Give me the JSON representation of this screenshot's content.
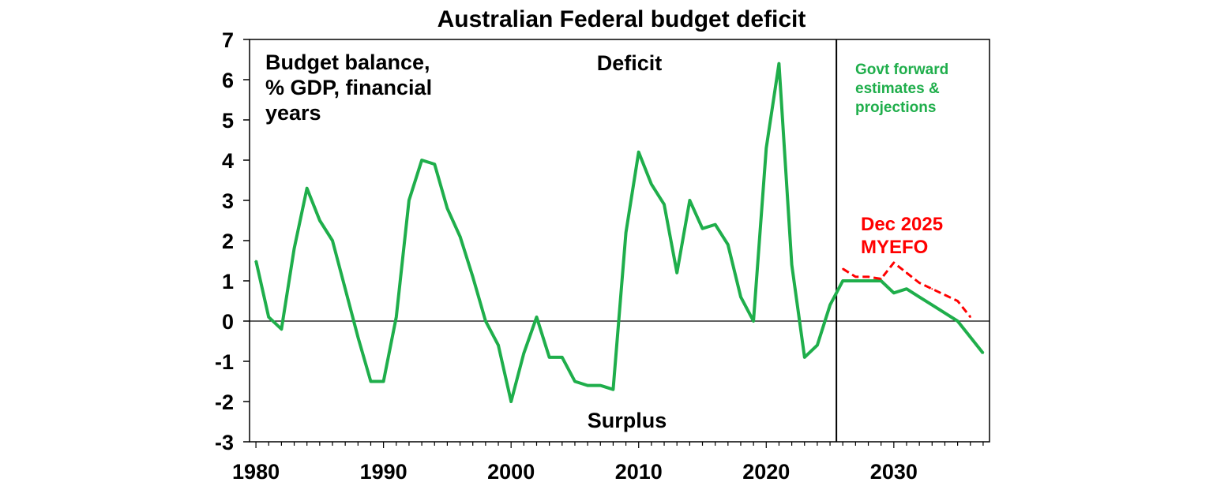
{
  "chart_data": {
    "type": "line",
    "title": "Australian Federal budget deficit",
    "xlabel": "",
    "ylabel": "",
    "xlim": [
      1979.5,
      2037.5
    ],
    "ylim": [
      -3,
      7
    ],
    "x_ticks": [
      "1980",
      "1990",
      "2000",
      "2010",
      "2020",
      "2030"
    ],
    "y_ticks": [
      "7",
      "6",
      "5",
      "4",
      "3",
      "2",
      "1",
      "0",
      "-1",
      "-2",
      "-3"
    ],
    "grid": false,
    "annotations": {
      "series_description": [
        "Budget balance,",
        "% GDP, financial",
        "years"
      ],
      "deficit": "Deficit",
      "surplus": "Surplus",
      "forecast_label": [
        "Govt forward",
        "estimates &",
        "projections"
      ],
      "myefo_label": [
        "Dec 2025",
        "MYEFO"
      ]
    },
    "divider_x": 2025.5,
    "series": [
      {
        "name": "",
        "color": "#1fae4b",
        "style": "solid",
        "x": [
          1980,
          1981,
          1982,
          1983,
          1984,
          1985,
          1986,
          1987,
          1988,
          1989,
          1990,
          1991,
          1992,
          1993,
          1994,
          1995,
          1996,
          1997,
          1998,
          1999,
          2000,
          2001,
          2002,
          2003,
          2004,
          2005,
          2006,
          2007,
          2008,
          2009,
          2010,
          2011,
          2012,
          2013,
          2014,
          2015,
          2016,
          2017,
          2018,
          2019,
          2020,
          2021,
          2022,
          2023,
          2024,
          2025,
          2026,
          2027,
          2028,
          2029,
          2030,
          2031,
          2032,
          2033,
          2034,
          2035,
          2036,
          2037
        ],
        "y": [
          1.5,
          0.1,
          -0.2,
          1.8,
          3.3,
          2.5,
          2.0,
          0.8,
          -0.4,
          -1.5,
          -1.5,
          0.1,
          3.0,
          4.0,
          3.9,
          2.8,
          2.1,
          1.1,
          0.0,
          -0.6,
          -2.0,
          -0.8,
          0.1,
          -0.9,
          -0.9,
          -1.5,
          -1.6,
          -1.6,
          -1.7,
          2.2,
          4.2,
          3.4,
          2.9,
          1.2,
          3.0,
          2.3,
          2.4,
          1.9,
          0.6,
          0.0,
          4.3,
          6.4,
          1.4,
          -0.9,
          -0.6,
          0.4,
          1.0,
          1.0,
          1.0,
          1.0,
          0.7,
          0.8,
          0.6,
          0.4,
          0.2,
          0.0,
          -0.4,
          -0.8
        ]
      },
      {
        "name": "Dec 2025 MYEFO",
        "color": "#ff0000",
        "style": "dashed",
        "x": [
          2026,
          2027,
          2028,
          2029,
          2030,
          2031,
          2032,
          2033,
          2034,
          2035,
          2036
        ],
        "y": [
          1.3,
          1.1,
          1.1,
          1.05,
          1.45,
          1.2,
          0.95,
          0.8,
          0.65,
          0.5,
          0.1
        ]
      }
    ]
  }
}
